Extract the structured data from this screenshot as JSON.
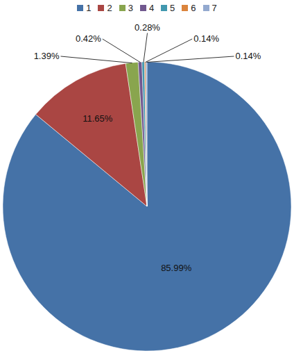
{
  "chart_data": {
    "type": "pie",
    "categories": [
      "1",
      "2",
      "3",
      "4",
      "5",
      "6",
      "7"
    ],
    "values": [
      85.99,
      11.65,
      1.39,
      0.42,
      0.28,
      0.14,
      0.14
    ],
    "value_labels": [
      "85.99%",
      "11.65%",
      "1.39%",
      "0.42%",
      "0.28%",
      "0.14%",
      "0.14%"
    ],
    "colors": [
      "#4572a7",
      "#aa4643",
      "#89a54e",
      "#71588f",
      "#4198af",
      "#db843d",
      "#93a9cf"
    ],
    "data_labels": true,
    "legend": "top"
  }
}
